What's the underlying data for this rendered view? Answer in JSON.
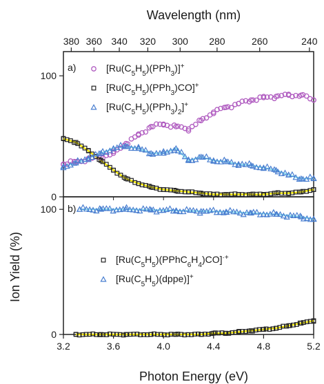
{
  "chart_data": [
    {
      "panel": "a)",
      "type": "scatter",
      "top_axis_title": "Wavelength (nm)",
      "top_ticks": [
        "380",
        "360",
        "340",
        "320",
        "300",
        "280",
        "260",
        "240"
      ],
      "top_tick_values": [
        380,
        360,
        340,
        320,
        300,
        280,
        260,
        240
      ],
      "ylabel": "Ion Yield (%)",
      "ylim": [
        0,
        120
      ],
      "y_ticks": [
        "0",
        "100"
      ],
      "y_tick_values": [
        0,
        100
      ],
      "xlim": [
        3.2,
        5.2
      ],
      "series": [
        {
          "name": "[Ru(C5H5)(PPh3)]+",
          "legend_parts": [
            [
              "[Ru(C",
              ""
            ],
            [
              "5",
              "sub"
            ],
            [
              "H",
              ""
            ],
            [
              "5",
              "sub"
            ],
            [
              ")(PPh",
              ""
            ],
            [
              "3",
              "sub"
            ],
            [
              ")]",
              ""
            ],
            [
              "+",
              "sup"
            ]
          ],
          "marker": "circle",
          "color": "#b05cc0",
          "x": [
            3.2,
            3.3,
            3.4,
            3.5,
            3.6,
            3.7,
            3.8,
            3.9,
            4.0,
            4.1,
            4.2,
            4.3,
            4.4,
            4.5,
            4.6,
            4.7,
            4.8,
            4.9,
            5.0,
            5.1,
            5.2
          ],
          "y": [
            27,
            29,
            31,
            33,
            36,
            44,
            51,
            58,
            60,
            58,
            56,
            63,
            70,
            74,
            77,
            80,
            82,
            83,
            84,
            84,
            80
          ]
        },
        {
          "name": "[Ru(C5H5)(PPh3)CO]+",
          "legend_parts": [
            [
              "[Ru(C",
              ""
            ],
            [
              "5",
              "sub"
            ],
            [
              "H",
              ""
            ],
            [
              "5",
              "sub"
            ],
            [
              ")(PPh",
              ""
            ],
            [
              "3",
              "sub"
            ],
            [
              ")CO]",
              ""
            ],
            [
              "+",
              "sup"
            ]
          ],
          "marker": "square",
          "color": "#222222",
          "fit_color": "#f2e600",
          "x": [
            3.2,
            3.3,
            3.4,
            3.5,
            3.6,
            3.7,
            3.8,
            3.9,
            4.0,
            4.1,
            4.2,
            4.3,
            4.4,
            4.5,
            4.6,
            4.7,
            4.8,
            4.9,
            5.0,
            5.1,
            5.2
          ],
          "y": [
            48,
            45,
            38,
            30,
            22,
            15,
            11,
            8,
            6,
            5,
            4,
            3,
            2,
            2,
            2,
            2,
            2,
            3,
            3,
            4,
            6
          ]
        },
        {
          "name": "[Ru(C5H5)(PPh3)2]+",
          "legend_parts": [
            [
              "[Ru(C",
              ""
            ],
            [
              "5",
              "sub"
            ],
            [
              "H",
              ""
            ],
            [
              "5",
              "sub"
            ],
            [
              ")(PPh",
              ""
            ],
            [
              "3",
              "sub"
            ],
            [
              ")",
              ""
            ],
            [
              "2",
              "sub"
            ],
            [
              "]",
              ""
            ],
            [
              "+",
              "sup"
            ]
          ],
          "marker": "triangle",
          "color": "#4a7fd0",
          "fit_color": "#8fe0f0",
          "x": [
            3.2,
            3.3,
            3.4,
            3.5,
            3.6,
            3.7,
            3.8,
            3.9,
            4.0,
            4.1,
            4.2,
            4.3,
            4.4,
            4.5,
            4.6,
            4.7,
            4.8,
            4.9,
            5.0,
            5.1,
            5.2
          ],
          "y": [
            25,
            28,
            32,
            36,
            40,
            42,
            40,
            36,
            36,
            40,
            30,
            33,
            30,
            29,
            27,
            26,
            24,
            22,
            18,
            15,
            15
          ]
        }
      ]
    },
    {
      "panel": "b)",
      "type": "scatter",
      "xlabel": "Photon Energy (eV)",
      "xlim": [
        3.2,
        5.2
      ],
      "x_ticks": [
        "3.2",
        "3.6",
        "4.0",
        "4.4",
        "4.8",
        "5.2"
      ],
      "x_tick_values": [
        3.2,
        3.6,
        4.0,
        4.4,
        4.8,
        5.2
      ],
      "ylim": [
        0,
        110
      ],
      "y_ticks": [
        "0",
        "100"
      ],
      "y_tick_values": [
        0,
        100
      ],
      "series": [
        {
          "name": "[Ru(C5H5)(PPhC6H4)CO]·+",
          "legend_parts": [
            [
              "[Ru(C",
              ""
            ],
            [
              "5",
              "sub"
            ],
            [
              "H",
              ""
            ],
            [
              "5",
              "sub"
            ],
            [
              ")(PPhC",
              ""
            ],
            [
              "6",
              "sub"
            ],
            [
              "H",
              ""
            ],
            [
              "4",
              "sub"
            ],
            [
              ")CO]",
              ""
            ],
            [
              "·+",
              "sup"
            ]
          ],
          "marker": "square",
          "color": "#222222",
          "fit_color": "#f2e600",
          "x": [
            3.3,
            3.5,
            3.7,
            3.9,
            4.1,
            4.3,
            4.4,
            4.5,
            4.6,
            4.7,
            4.8,
            4.9,
            5.0,
            5.1,
            5.2
          ],
          "y": [
            0,
            0,
            0,
            0,
            0,
            0,
            1,
            1,
            2,
            3,
            4,
            5,
            7,
            9,
            11
          ]
        },
        {
          "name": "[Ru(C5H5)(dppe)]+",
          "legend_parts": [
            [
              "[Ru(C",
              ""
            ],
            [
              "5",
              "sub"
            ],
            [
              "H",
              ""
            ],
            [
              "5",
              "sub"
            ],
            [
              ")(dppe)]",
              ""
            ],
            [
              "+",
              "sup"
            ]
          ],
          "marker": "triangle",
          "color": "#4a7fd0",
          "fit_color": "#8fe0f0",
          "x": [
            3.33,
            3.5,
            3.7,
            3.9,
            4.1,
            4.3,
            4.5,
            4.7,
            4.9,
            5.1,
            5.2
          ],
          "y": [
            100,
            100,
            100,
            99.5,
            99,
            98.5,
            98,
            97,
            96,
            94,
            92
          ]
        }
      ]
    }
  ]
}
